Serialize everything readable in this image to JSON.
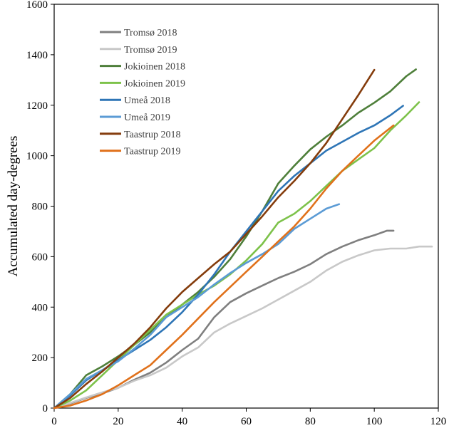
{
  "chart_data": {
    "type": "line",
    "title": "",
    "xlabel": "",
    "ylabel": "Accumulated day-degrees",
    "xlim": [
      0,
      120
    ],
    "ylim": [
      0,
      1600
    ],
    "x_ticks": [
      0,
      20,
      40,
      60,
      80,
      100,
      120
    ],
    "y_ticks": [
      0,
      200,
      400,
      600,
      800,
      1000,
      1200,
      1400,
      1600
    ],
    "grid": false,
    "legend_position": "top-left",
    "series": [
      {
        "name": "Tromsø 2018",
        "color": "#7f7f7f",
        "points": [
          [
            0,
            0
          ],
          [
            5,
            18
          ],
          [
            10,
            40
          ],
          [
            15,
            58
          ],
          [
            20,
            80
          ],
          [
            25,
            112
          ],
          [
            30,
            140
          ],
          [
            35,
            180
          ],
          [
            40,
            230
          ],
          [
            45,
            275
          ],
          [
            50,
            360
          ],
          [
            55,
            420
          ],
          [
            60,
            455
          ],
          [
            65,
            485
          ],
          [
            70,
            515
          ],
          [
            75,
            540
          ],
          [
            80,
            570
          ],
          [
            85,
            610
          ],
          [
            90,
            640
          ],
          [
            95,
            665
          ],
          [
            100,
            685
          ],
          [
            104,
            703
          ],
          [
            106,
            703
          ]
        ]
      },
      {
        "name": "Tromsø 2019",
        "color": "#c8c8c8",
        "points": [
          [
            0,
            0
          ],
          [
            5,
            20
          ],
          [
            10,
            42
          ],
          [
            15,
            62
          ],
          [
            20,
            80
          ],
          [
            25,
            108
          ],
          [
            30,
            130
          ],
          [
            35,
            160
          ],
          [
            40,
            205
          ],
          [
            45,
            240
          ],
          [
            50,
            300
          ],
          [
            55,
            335
          ],
          [
            60,
            365
          ],
          [
            65,
            395
          ],
          [
            70,
            430
          ],
          [
            75,
            465
          ],
          [
            80,
            500
          ],
          [
            85,
            545
          ],
          [
            90,
            580
          ],
          [
            95,
            605
          ],
          [
            100,
            625
          ],
          [
            105,
            632
          ],
          [
            110,
            632
          ],
          [
            114,
            640
          ],
          [
            118,
            640
          ]
        ]
      },
      {
        "name": "Jokioinen 2018",
        "color": "#4e7f3a",
        "points": [
          [
            0,
            0
          ],
          [
            5,
            55
          ],
          [
            10,
            130
          ],
          [
            15,
            165
          ],
          [
            20,
            205
          ],
          [
            25,
            250
          ],
          [
            30,
            300
          ],
          [
            35,
            360
          ],
          [
            40,
            410
          ],
          [
            45,
            460
          ],
          [
            50,
            520
          ],
          [
            55,
            590
          ],
          [
            60,
            680
          ],
          [
            65,
            780
          ],
          [
            70,
            890
          ],
          [
            75,
            960
          ],
          [
            80,
            1025
          ],
          [
            85,
            1075
          ],
          [
            90,
            1120
          ],
          [
            95,
            1170
          ],
          [
            100,
            1210
          ],
          [
            105,
            1255
          ],
          [
            110,
            1315
          ],
          [
            113,
            1342
          ]
        ]
      },
      {
        "name": "Jokioinen 2019",
        "color": "#7dc24a",
        "points": [
          [
            0,
            0
          ],
          [
            5,
            30
          ],
          [
            10,
            70
          ],
          [
            15,
            130
          ],
          [
            20,
            190
          ],
          [
            25,
            250
          ],
          [
            30,
            310
          ],
          [
            35,
            370
          ],
          [
            40,
            410
          ],
          [
            45,
            450
          ],
          [
            50,
            485
          ],
          [
            55,
            530
          ],
          [
            60,
            585
          ],
          [
            65,
            650
          ],
          [
            70,
            735
          ],
          [
            75,
            770
          ],
          [
            80,
            820
          ],
          [
            85,
            880
          ],
          [
            90,
            940
          ],
          [
            95,
            985
          ],
          [
            100,
            1030
          ],
          [
            105,
            1100
          ],
          [
            110,
            1160
          ],
          [
            114,
            1212
          ]
        ]
      },
      {
        "name": "Umeå 2018",
        "color": "#2e75b6",
        "points": [
          [
            0,
            0
          ],
          [
            5,
            50
          ],
          [
            10,
            110
          ],
          [
            15,
            150
          ],
          [
            20,
            190
          ],
          [
            25,
            230
          ],
          [
            30,
            270
          ],
          [
            35,
            320
          ],
          [
            40,
            380
          ],
          [
            45,
            450
          ],
          [
            50,
            530
          ],
          [
            55,
            620
          ],
          [
            60,
            700
          ],
          [
            65,
            780
          ],
          [
            70,
            860
          ],
          [
            75,
            920
          ],
          [
            80,
            970
          ],
          [
            85,
            1020
          ],
          [
            90,
            1055
          ],
          [
            95,
            1090
          ],
          [
            100,
            1120
          ],
          [
            105,
            1160
          ],
          [
            109,
            1198
          ]
        ]
      },
      {
        "name": "Umeå 2019",
        "color": "#5b9bd5",
        "points": [
          [
            0,
            0
          ],
          [
            5,
            55
          ],
          [
            10,
            115
          ],
          [
            15,
            150
          ],
          [
            20,
            185
          ],
          [
            25,
            235
          ],
          [
            30,
            290
          ],
          [
            35,
            360
          ],
          [
            40,
            400
          ],
          [
            45,
            440
          ],
          [
            50,
            490
          ],
          [
            55,
            535
          ],
          [
            60,
            575
          ],
          [
            65,
            610
          ],
          [
            70,
            650
          ],
          [
            75,
            710
          ],
          [
            80,
            750
          ],
          [
            85,
            790
          ],
          [
            89,
            808
          ]
        ]
      },
      {
        "name": "Taastrup 2018",
        "color": "#843c0c",
        "points": [
          [
            0,
            0
          ],
          [
            5,
            40
          ],
          [
            10,
            95
          ],
          [
            15,
            145
          ],
          [
            20,
            200
          ],
          [
            25,
            255
          ],
          [
            30,
            320
          ],
          [
            35,
            395
          ],
          [
            40,
            460
          ],
          [
            45,
            515
          ],
          [
            50,
            570
          ],
          [
            55,
            620
          ],
          [
            60,
            690
          ],
          [
            65,
            760
          ],
          [
            70,
            835
          ],
          [
            75,
            900
          ],
          [
            80,
            970
          ],
          [
            85,
            1050
          ],
          [
            90,
            1145
          ],
          [
            95,
            1240
          ],
          [
            100,
            1340
          ]
        ]
      },
      {
        "name": "Taastrup 2019",
        "color": "#e0711b",
        "points": [
          [
            0,
            0
          ],
          [
            5,
            10
          ],
          [
            10,
            30
          ],
          [
            15,
            55
          ],
          [
            20,
            90
          ],
          [
            25,
            130
          ],
          [
            30,
            170
          ],
          [
            35,
            230
          ],
          [
            40,
            290
          ],
          [
            45,
            355
          ],
          [
            50,
            420
          ],
          [
            55,
            480
          ],
          [
            60,
            540
          ],
          [
            65,
            600
          ],
          [
            70,
            660
          ],
          [
            75,
            720
          ],
          [
            80,
            790
          ],
          [
            85,
            870
          ],
          [
            90,
            940
          ],
          [
            95,
            1000
          ],
          [
            100,
            1060
          ],
          [
            106,
            1120
          ]
        ]
      }
    ]
  }
}
